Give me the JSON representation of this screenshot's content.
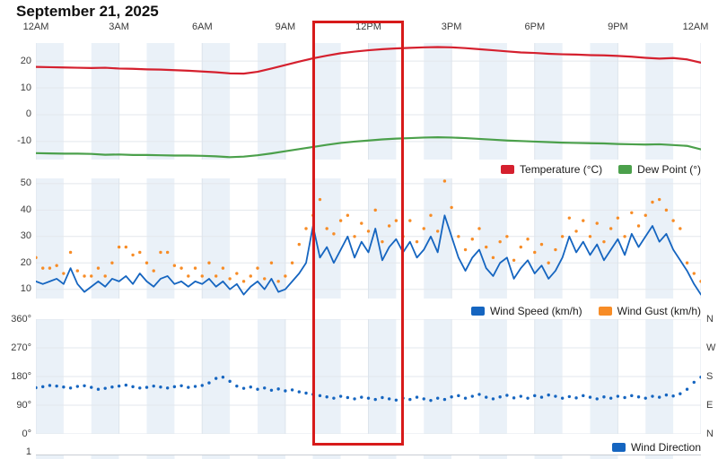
{
  "title": "September 21, 2025",
  "x_axis": {
    "tick_labels": [
      "12AM",
      "3AM",
      "6AM",
      "9AM",
      "12PM",
      "3PM",
      "6PM",
      "9PM",
      "12AM"
    ],
    "tick_hours": [
      0,
      3,
      6,
      9,
      12,
      15,
      18,
      21,
      24
    ]
  },
  "colors": {
    "temperature": "#d5202e",
    "dew_point": "#4ba04b",
    "wind_speed": "#1565c0",
    "wind_gust": "#f78c26",
    "wind_direction": "#1565c0",
    "highlight_box": "#d71a1a",
    "stripe": "#eaf1f8",
    "h_grid": "#e3e7ec",
    "v_grid": "#dde4ec",
    "axis_text": "#3d3d3d"
  },
  "highlight_box": {
    "x_start_hour": 10.0,
    "x_end_hour": 13.3
  },
  "next_chart": {
    "first_tick_label": "1"
  },
  "chart_data": [
    {
      "type": "line",
      "title": "Temperature and Dew Point",
      "x_range_hours": [
        0,
        24
      ],
      "y_range": [
        -16.7,
        26.7
      ],
      "grid": true,
      "legend_position": "bottom-right",
      "y_ticks": [
        {
          "value": 20,
          "label": "20"
        },
        {
          "value": 10,
          "label": "10"
        },
        {
          "value": 0,
          "label": "0"
        },
        {
          "value": -10,
          "label": "-10"
        }
      ],
      "series": [
        {
          "name": "Temperature (°C)",
          "style": "line",
          "color": "#d5202e",
          "x_start_hour": 0,
          "x_step_hours": 0.5,
          "values": [
            17.8,
            17.7,
            17.6,
            17.5,
            17.4,
            17.5,
            17.2,
            17.1,
            16.9,
            16.8,
            16.6,
            16.4,
            16.1,
            15.8,
            15.4,
            15.3,
            16.0,
            17.2,
            18.5,
            19.8,
            21.0,
            22.0,
            22.9,
            23.5,
            24.0,
            24.4,
            24.7,
            24.9,
            25.1,
            25.2,
            25.1,
            24.8,
            24.4,
            24.0,
            23.6,
            23.2,
            23.0,
            22.7,
            22.5,
            22.4,
            22.2,
            22.1,
            21.9,
            21.6,
            21.2,
            20.9,
            21.1,
            20.6,
            19.4
          ]
        },
        {
          "name": "Dew Point (°)",
          "style": "line",
          "color": "#4ba04b",
          "x_start_hour": 0,
          "x_step_hours": 0.5,
          "values": [
            -14.3,
            -14.4,
            -14.5,
            -14.5,
            -14.6,
            -14.9,
            -14.8,
            -15.0,
            -15.0,
            -15.1,
            -15.2,
            -15.2,
            -15.3,
            -15.5,
            -15.8,
            -15.6,
            -15.1,
            -14.4,
            -13.6,
            -12.8,
            -12.0,
            -11.2,
            -10.5,
            -10.0,
            -9.6,
            -9.2,
            -8.9,
            -8.7,
            -8.5,
            -8.4,
            -8.5,
            -8.7,
            -9.0,
            -9.3,
            -9.6,
            -9.8,
            -10.0,
            -10.2,
            -10.4,
            -10.5,
            -10.6,
            -10.7,
            -10.9,
            -11.0,
            -11.1,
            -11.0,
            -11.3,
            -11.6,
            -12.9
          ]
        }
      ]
    },
    {
      "type": "line+scatter",
      "title": "Wind Speed and Wind Gust",
      "x_range_hours": [
        0,
        24
      ],
      "y_range": [
        6.5,
        52
      ],
      "grid": true,
      "legend_position": "bottom-right",
      "y_ticks": [
        {
          "value": 50,
          "label": "50"
        },
        {
          "value": 40,
          "label": "40"
        },
        {
          "value": 30,
          "label": "30"
        },
        {
          "value": 20,
          "label": "20"
        },
        {
          "value": 10,
          "label": "10"
        }
      ],
      "series": [
        {
          "name": "Wind Speed (km/h)",
          "style": "line",
          "color": "#1565c0",
          "x_start_hour": 0,
          "x_step_hours": 0.25,
          "values": [
            13,
            12,
            13,
            14,
            12,
            18,
            12,
            9,
            11,
            13,
            11,
            14,
            13,
            15,
            12,
            16,
            13,
            11,
            14,
            15,
            12,
            13,
            11,
            13,
            12,
            14,
            11,
            13,
            10,
            12,
            8,
            11,
            13,
            10,
            14,
            9,
            10,
            13,
            16,
            20,
            34,
            22,
            26,
            20,
            25,
            30,
            22,
            28,
            24,
            33,
            21,
            26,
            29,
            24,
            28,
            22,
            25,
            30,
            24,
            38,
            30,
            22,
            17,
            22,
            25,
            18,
            15,
            20,
            22,
            14,
            18,
            21,
            16,
            19,
            14,
            17,
            22,
            30,
            24,
            28,
            23,
            27,
            21,
            25,
            29,
            23,
            31,
            26,
            30,
            34,
            28,
            31,
            25,
            21,
            17,
            12,
            8
          ]
        },
        {
          "name": "Wind Gust (km/h)",
          "style": "scatter",
          "color": "#f78c26",
          "x_start_hour": 0,
          "x_step_hours": 0.25,
          "values": [
            22,
            18,
            18,
            19,
            16,
            24,
            17,
            15,
            15,
            18,
            15,
            20,
            26,
            26,
            23,
            24,
            20,
            17,
            24,
            24,
            19,
            18,
            15,
            18,
            15,
            20,
            15,
            18,
            14,
            16,
            13,
            15,
            18,
            14,
            20,
            13,
            15,
            20,
            27,
            33,
            38,
            44,
            33,
            31,
            36,
            38,
            30,
            35,
            32,
            40,
            28,
            34,
            36,
            30,
            36,
            28,
            33,
            38,
            32,
            51,
            41,
            30,
            25,
            29,
            33,
            26,
            22,
            28,
            30,
            21,
            26,
            29,
            24,
            27,
            20,
            25,
            30,
            37,
            32,
            36,
            30,
            35,
            28,
            33,
            37,
            30,
            39,
            34,
            38,
            43,
            44,
            40,
            36,
            33,
            20,
            16,
            13
          ]
        }
      ]
    },
    {
      "type": "scatter",
      "title": "Wind Direction",
      "x_range_hours": [
        0,
        24
      ],
      "y_range": [
        0,
        360
      ],
      "grid": true,
      "legend_position": "bottom-right",
      "y_ticks": [
        {
          "value": 360,
          "label": "360°"
        },
        {
          "value": 270,
          "label": "270°"
        },
        {
          "value": 180,
          "label": "180°"
        },
        {
          "value": 90,
          "label": "90°"
        },
        {
          "value": 0,
          "label": "0°"
        }
      ],
      "y_ticks_right": [
        {
          "value": 360,
          "label": "N"
        },
        {
          "value": 270,
          "label": "W"
        },
        {
          "value": 180,
          "label": "S"
        },
        {
          "value": 90,
          "label": "E"
        },
        {
          "value": 0,
          "label": "N"
        }
      ],
      "series": [
        {
          "name": "Wind Direction",
          "style": "scatter",
          "color": "#1565c0",
          "x_start_hour": 0,
          "x_step_hours": 0.25,
          "values": [
            145,
            148,
            152,
            150,
            147,
            144,
            149,
            151,
            146,
            140,
            143,
            147,
            150,
            153,
            148,
            144,
            146,
            150,
            147,
            144,
            148,
            151,
            146,
            149,
            152,
            160,
            174,
            178,
            165,
            150,
            143,
            147,
            140,
            144,
            137,
            141,
            135,
            138,
            132,
            128,
            124,
            120,
            116,
            112,
            118,
            114,
            110,
            115,
            112,
            108,
            114,
            110,
            106,
            112,
            108,
            115,
            110,
            105,
            112,
            108,
            116,
            120,
            112,
            118,
            124,
            115,
            110,
            116,
            121,
            113,
            118,
            112,
            120,
            115,
            122,
            118,
            112,
            117,
            113,
            120,
            115,
            110,
            116,
            112,
            118,
            114,
            120,
            116,
            112,
            118,
            115,
            122,
            119,
            126,
            140,
            162,
            178
          ]
        }
      ]
    }
  ]
}
